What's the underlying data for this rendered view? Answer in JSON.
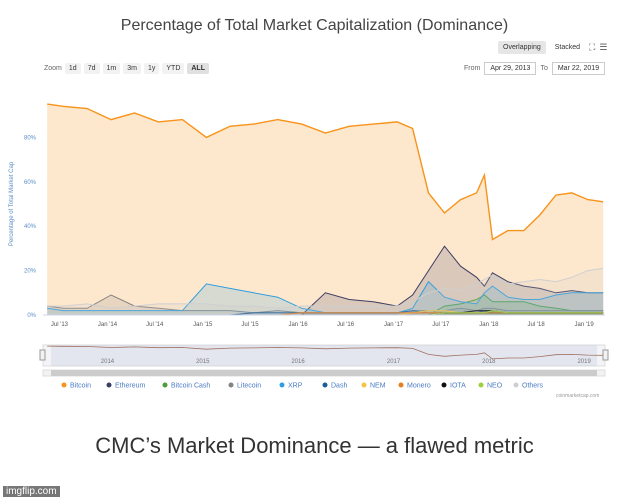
{
  "header": {
    "title": "Percentage of Total Market Capitalization (Dominance)",
    "mode_overlapping": "Overlapping",
    "mode_stacked": "Stacked",
    "zoom_label": "Zoom",
    "zoom_options": [
      "1d",
      "7d",
      "1m",
      "3m",
      "1y",
      "YTD",
      "ALL"
    ],
    "zoom_selected": "ALL",
    "from_label": "From",
    "from_value": "Apr 29, 2013",
    "to_label": "To",
    "to_value": "Mar 22, 2019"
  },
  "caption": "CMC’s Market Dominance — a flawed metric",
  "watermark": "imgflip.com",
  "attribution": "coinmarketcap.com",
  "chart_data": {
    "type": "area",
    "title": "Percentage of Total Market Capitalization (Dominance)",
    "xlabel": "",
    "ylabel": "Percentage of Total Market Cap",
    "ylim": [
      0,
      100
    ],
    "y_ticks": [
      "0%",
      "20%",
      "40%",
      "60%",
      "80%"
    ],
    "x_ticks": [
      "Jul '13",
      "Jan '14",
      "Jul '14",
      "Jan '15",
      "Jul '15",
      "Jan '16",
      "Jul '16",
      "Jan '17",
      "Jul '17",
      "Jan '18",
      "Jul '18",
      "Jan '19"
    ],
    "navigator_ticks": [
      "2014",
      "2015",
      "2016",
      "2017",
      "2018",
      "2019"
    ],
    "x": [
      "2013-05",
      "2013-07",
      "2013-10",
      "2014-01",
      "2014-04",
      "2014-07",
      "2014-10",
      "2015-01",
      "2015-04",
      "2015-07",
      "2015-10",
      "2016-01",
      "2016-04",
      "2016-07",
      "2016-10",
      "2017-01",
      "2017-03",
      "2017-05",
      "2017-07",
      "2017-09",
      "2017-11",
      "2017-12",
      "2018-01",
      "2018-03",
      "2018-05",
      "2018-07",
      "2018-09",
      "2018-11",
      "2019-01",
      "2019-03"
    ],
    "series": [
      {
        "name": "Bitcoin",
        "color": "#f7931a",
        "values": [
          95,
          94,
          93,
          88,
          91,
          87,
          88,
          80,
          85,
          86,
          88,
          86,
          82,
          85,
          86,
          87,
          84,
          55,
          46,
          52,
          55,
          63,
          34,
          38,
          38,
          45,
          54,
          55,
          52,
          51
        ]
      },
      {
        "name": "Ethereum",
        "color": "#3d3e63",
        "values": [
          0,
          0,
          0,
          0,
          0,
          0,
          0,
          0,
          0,
          0,
          0,
          0,
          10,
          7,
          6,
          4,
          9,
          20,
          31,
          22,
          17,
          13,
          19,
          15,
          13,
          12,
          10,
          11,
          10,
          10
        ]
      },
      {
        "name": "Bitcoin Cash",
        "color": "#4b9e3c",
        "values": [
          0,
          0,
          0,
          0,
          0,
          0,
          0,
          0,
          0,
          0,
          0,
          0,
          0,
          0,
          0,
          0,
          0,
          0,
          4,
          5,
          7,
          9,
          6,
          6,
          6,
          4,
          3,
          2,
          2,
          2
        ]
      },
      {
        "name": "Litecoin",
        "color": "#838383",
        "values": [
          4,
          3,
          3,
          9,
          4,
          3,
          2,
          2,
          2,
          1,
          2,
          1,
          1,
          1,
          1,
          1,
          2,
          2,
          2,
          3,
          2,
          3,
          3,
          2,
          2,
          2,
          2,
          2,
          2,
          2
        ]
      },
      {
        "name": "XRP",
        "color": "#2f9ee0",
        "values": [
          3,
          2,
          2,
          2,
          2,
          2,
          2,
          14,
          12,
          10,
          8,
          3,
          1,
          1,
          1,
          1,
          3,
          15,
          8,
          6,
          5,
          10,
          13,
          8,
          7,
          7,
          9,
          10,
          10,
          10
        ]
      },
      {
        "name": "Dash",
        "color": "#1e5e96",
        "values": [
          0,
          0,
          0,
          0,
          0,
          0,
          0,
          0,
          0,
          1,
          1,
          1,
          1,
          1,
          1,
          1,
          2,
          1,
          1,
          1,
          1,
          2,
          1,
          1,
          1,
          1,
          1,
          1,
          1,
          1
        ]
      },
      {
        "name": "NEM",
        "color": "#f4c542",
        "values": [
          0,
          0,
          0,
          0,
          0,
          0,
          0,
          0,
          0,
          0,
          0,
          0,
          0,
          0,
          0,
          0,
          1,
          2,
          2,
          1,
          1,
          1,
          2,
          1,
          1,
          1,
          1,
          1,
          1,
          1
        ]
      },
      {
        "name": "Monero",
        "color": "#e67e22",
        "values": [
          0,
          0,
          0,
          0,
          0,
          0,
          0,
          0,
          0,
          0,
          0,
          1,
          1,
          1,
          1,
          1,
          1,
          1,
          1,
          1,
          1,
          1,
          1,
          1,
          1,
          1,
          1,
          1,
          1,
          1
        ]
      },
      {
        "name": "IOTA",
        "color": "#111111",
        "values": [
          0,
          0,
          0,
          0,
          0,
          0,
          0,
          0,
          0,
          0,
          0,
          0,
          0,
          0,
          0,
          0,
          0,
          0,
          1,
          1,
          2,
          2,
          2,
          1,
          1,
          1,
          1,
          1,
          1,
          1
        ]
      },
      {
        "name": "NEO",
        "color": "#9bd23c",
        "values": [
          0,
          0,
          0,
          0,
          0,
          0,
          0,
          0,
          0,
          0,
          0,
          0,
          0,
          0,
          0,
          0,
          0,
          0,
          1,
          1,
          1,
          1,
          2,
          1,
          1,
          1,
          1,
          1,
          1,
          1
        ]
      },
      {
        "name": "Others",
        "color": "#cfcfcf",
        "values": [
          4,
          4,
          5,
          3,
          4,
          5,
          5,
          5,
          4,
          4,
          3,
          4,
          4,
          4,
          4,
          4,
          6,
          10,
          12,
          11,
          14,
          16,
          18,
          14,
          15,
          16,
          15,
          17,
          20,
          21
        ]
      }
    ],
    "legend_position": "bottom",
    "grid": false,
    "navigator": true
  }
}
